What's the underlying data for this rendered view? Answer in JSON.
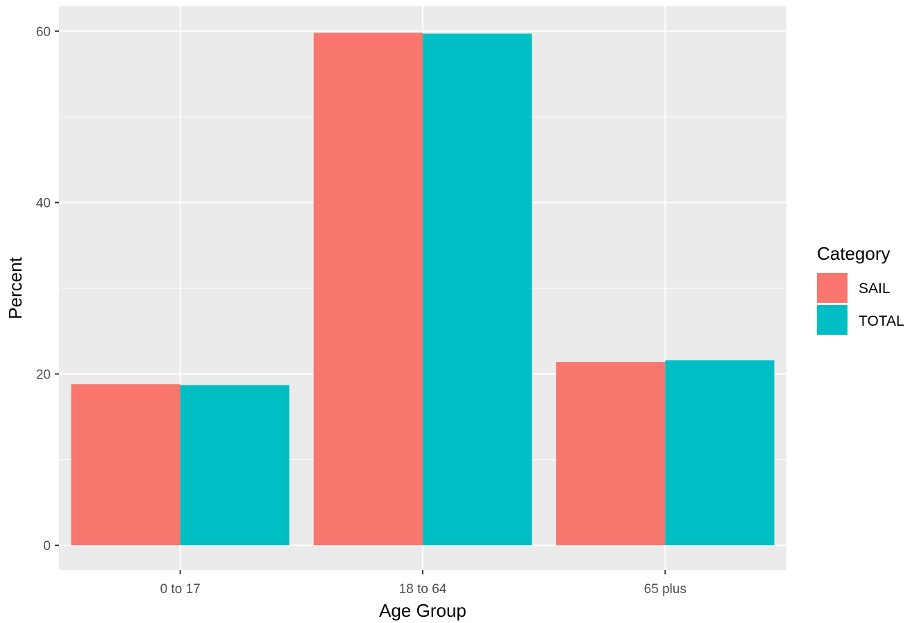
{
  "chart_data": {
    "type": "bar",
    "categories": [
      "0 to 17",
      "18 to 64",
      "65 plus"
    ],
    "series": [
      {
        "name": "SAIL",
        "values": [
          18.8,
          59.8,
          21.4
        ],
        "color": "#F8766D"
      },
      {
        "name": "TOTAL",
        "values": [
          18.7,
          59.7,
          21.6
        ],
        "color": "#00BFC4"
      }
    ],
    "xlabel": "Age Group",
    "ylabel": "Percent",
    "ylim": [
      -2.9,
      62.9
    ],
    "yticks": [
      0,
      20,
      40,
      60
    ],
    "ytick_labels": [
      "0",
      "20",
      "40",
      "60"
    ],
    "grid": true,
    "panel_background": "#EBEBEB",
    "legend": {
      "title": "Category",
      "position": "right"
    }
  }
}
